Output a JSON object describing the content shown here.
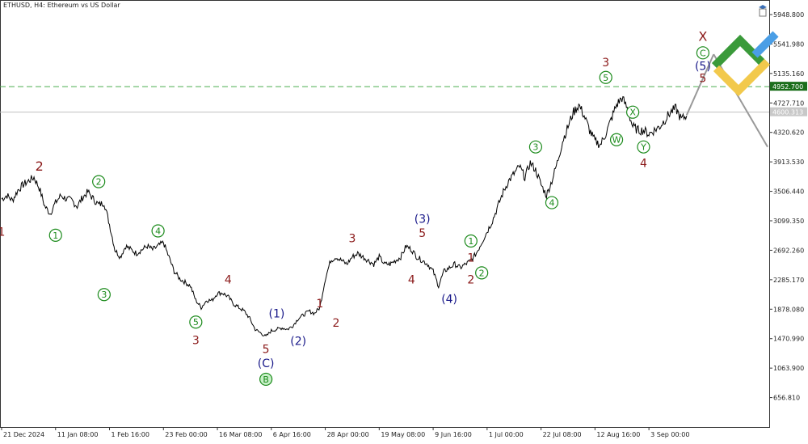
{
  "symbol_title": "ETHUSD, H4:  Ethereum vs US Dollar",
  "colors": {
    "price": "#000000",
    "axis": "#333333",
    "dashed_level": "#4caf50",
    "level_label_bg": "#1b6e1b",
    "current_label_bg": "#c8c8c8",
    "green": "#1a8a1a",
    "darkred": "#8b1a1a",
    "navy": "#1a1a8a",
    "projection": "#999999"
  },
  "chart_data": {
    "type": "line",
    "ylim": [
      250,
      6150
    ],
    "y_ticks": [
      "5948.800",
      "5541.980",
      "5135.160",
      "4727.710",
      "4320.620",
      "3913.530",
      "3506.440",
      "3099.350",
      "2692.260",
      "2285.170",
      "1878.080",
      "1470.990",
      "1063.900",
      "656.810"
    ],
    "y_tick_values": [
      5948.8,
      5541.98,
      5135.16,
      4727.71,
      4320.62,
      3913.53,
      3506.44,
      3099.35,
      2692.26,
      2285.17,
      1878.08,
      1470.99,
      1063.9,
      656.81
    ],
    "x_ticks": [
      "21 Dec 2024",
      "11 Jan 08:00",
      "1 Feb 16:00",
      "23 Feb 00:00",
      "16 Mar 08:00",
      "6 Apr 16:00",
      "28 Apr 00:00",
      "19 May 08:00",
      "9 Jun 16:00",
      "1 Jul 00:00",
      "22 Jul 08:00",
      "12 Aug 16:00",
      "3 Sep 00:00"
    ],
    "x_tick_index": [
      0,
      10,
      20,
      30,
      40,
      50,
      60,
      70,
      80,
      90,
      100,
      110,
      120
    ],
    "price_levels": [
      {
        "label": "4952.700",
        "value": 4952.7,
        "style": "dashed"
      },
      {
        "label": "4600.313",
        "value": 4600.313,
        "style": "solid"
      }
    ],
    "series": [
      {
        "values": [
          3400,
          3450,
          3380,
          3520,
          3600,
          3650,
          3700,
          3550,
          3300,
          3200,
          3350,
          3450,
          3400,
          3380,
          3300,
          3420,
          3500,
          3400,
          3320,
          3350,
          3050,
          2700,
          2600,
          2750,
          2700,
          2650,
          2700,
          2750,
          2700,
          2750,
          2800,
          2600,
          2400,
          2300,
          2250,
          2200,
          2000,
          1900,
          2000,
          2000,
          2100,
          2100,
          2050,
          1950,
          1900,
          1850,
          1750,
          1600,
          1550,
          1500,
          1580,
          1600,
          1620,
          1600,
          1650,
          1750,
          1800,
          1850,
          1820,
          1900,
          2300,
          2550,
          2600,
          2550,
          2500,
          2600,
          2650,
          2600,
          2550,
          2500,
          2600,
          2500,
          2500,
          2550,
          2600,
          2750,
          2700,
          2600,
          2550,
          2500,
          2400,
          2200,
          2400,
          2450,
          2500,
          2450,
          2500,
          2550,
          2650,
          2800,
          2950,
          3100,
          3300,
          3500,
          3650,
          3750,
          3850,
          3700,
          3900,
          3800,
          3600,
          3450,
          3650,
          3900,
          4200,
          4400,
          4600,
          4700,
          4550,
          4350,
          4200,
          4150,
          4300,
          4500,
          4700,
          4800,
          4650,
          4400,
          4350,
          4350,
          4300,
          4350,
          4400,
          4500,
          4600,
          4650,
          4500,
          4550
        ],
        "points_as_index": true
      }
    ],
    "projection_lines": [
      {
        "from_index": 127,
        "to_index": 132,
        "from_value": 4560,
        "to_value": 5400
      },
      {
        "from_index": 132,
        "to_index": 142,
        "from_value": 5400,
        "to_value": 4120
      }
    ],
    "wave_labels": [
      {
        "text": "1",
        "color": "darkred",
        "i": 0,
        "v": 2950,
        "style": "plain"
      },
      {
        "text": "2",
        "color": "darkred",
        "i": 7,
        "v": 3850,
        "style": "plain",
        "big": true
      },
      {
        "text": "1",
        "color": "green",
        "i": 10,
        "v": 2900,
        "style": "circle"
      },
      {
        "text": "2",
        "color": "green",
        "i": 18,
        "v": 3640,
        "style": "circle"
      },
      {
        "text": "3",
        "color": "green",
        "i": 19,
        "v": 2080,
        "style": "circle"
      },
      {
        "text": "4",
        "color": "green",
        "i": 29,
        "v": 2960,
        "style": "circle"
      },
      {
        "text": "5",
        "color": "green",
        "i": 36,
        "v": 1700,
        "style": "circle"
      },
      {
        "text": "3",
        "color": "darkred",
        "i": 36,
        "v": 1450,
        "style": "plain"
      },
      {
        "text": "4",
        "color": "darkred",
        "i": 42,
        "v": 2290,
        "style": "plain"
      },
      {
        "text": "(1)",
        "color": "navy",
        "i": 51,
        "v": 1820,
        "style": "plain"
      },
      {
        "text": "5",
        "color": "darkred",
        "i": 49,
        "v": 1330,
        "style": "plain"
      },
      {
        "text": "(C)",
        "color": "navy",
        "i": 49,
        "v": 1130,
        "style": "plain"
      },
      {
        "text": "B",
        "color": "green",
        "i": 49,
        "v": 910,
        "style": "circle-filled"
      },
      {
        "text": "(2)",
        "color": "navy",
        "i": 55,
        "v": 1440,
        "style": "plain"
      },
      {
        "text": "1",
        "color": "darkred",
        "i": 59,
        "v": 1960,
        "style": "plain"
      },
      {
        "text": "2",
        "color": "darkred",
        "i": 62,
        "v": 1690,
        "style": "plain"
      },
      {
        "text": "3",
        "color": "darkred",
        "i": 65,
        "v": 2860,
        "style": "plain"
      },
      {
        "text": "(3)",
        "color": "navy",
        "i": 78,
        "v": 3130,
        "style": "plain"
      },
      {
        "text": "5",
        "color": "darkred",
        "i": 78,
        "v": 2930,
        "style": "plain"
      },
      {
        "text": "4",
        "color": "darkred",
        "i": 76,
        "v": 2290,
        "style": "plain"
      },
      {
        "text": "(4)",
        "color": "navy",
        "i": 83,
        "v": 2020,
        "style": "plain"
      },
      {
        "text": "1",
        "color": "green",
        "i": 87,
        "v": 2820,
        "style": "circle"
      },
      {
        "text": "1",
        "color": "darkred",
        "i": 87,
        "v": 2590,
        "style": "plain"
      },
      {
        "text": "2",
        "color": "darkred",
        "i": 87,
        "v": 2290,
        "style": "plain"
      },
      {
        "text": "2",
        "color": "green",
        "i": 89,
        "v": 2380,
        "style": "circle"
      },
      {
        "text": "3",
        "color": "green",
        "i": 99,
        "v": 4120,
        "style": "circle"
      },
      {
        "text": "4",
        "color": "green",
        "i": 102,
        "v": 3350,
        "style": "circle"
      },
      {
        "text": "3",
        "color": "darkred",
        "i": 112,
        "v": 5290,
        "style": "plain"
      },
      {
        "text": "5",
        "color": "green",
        "i": 112,
        "v": 5080,
        "style": "circle"
      },
      {
        "text": "X",
        "color": "green",
        "i": 117,
        "v": 4600,
        "style": "circle"
      },
      {
        "text": "W",
        "color": "green",
        "i": 114,
        "v": 4220,
        "style": "circle"
      },
      {
        "text": "Y",
        "color": "green",
        "i": 119,
        "v": 4120,
        "style": "circle"
      },
      {
        "text": "4",
        "color": "darkred",
        "i": 119,
        "v": 3900,
        "style": "plain"
      },
      {
        "text": "X",
        "color": "darkred",
        "i": 130,
        "v": 5640,
        "style": "plain",
        "big": true
      },
      {
        "text": "C",
        "color": "green",
        "i": 130,
        "v": 5420,
        "style": "circle"
      },
      {
        "text": "(5)",
        "color": "navy",
        "i": 130,
        "v": 5240,
        "style": "plain"
      },
      {
        "text": "5",
        "color": "darkred",
        "i": 130,
        "v": 5070,
        "style": "plain"
      }
    ]
  }
}
